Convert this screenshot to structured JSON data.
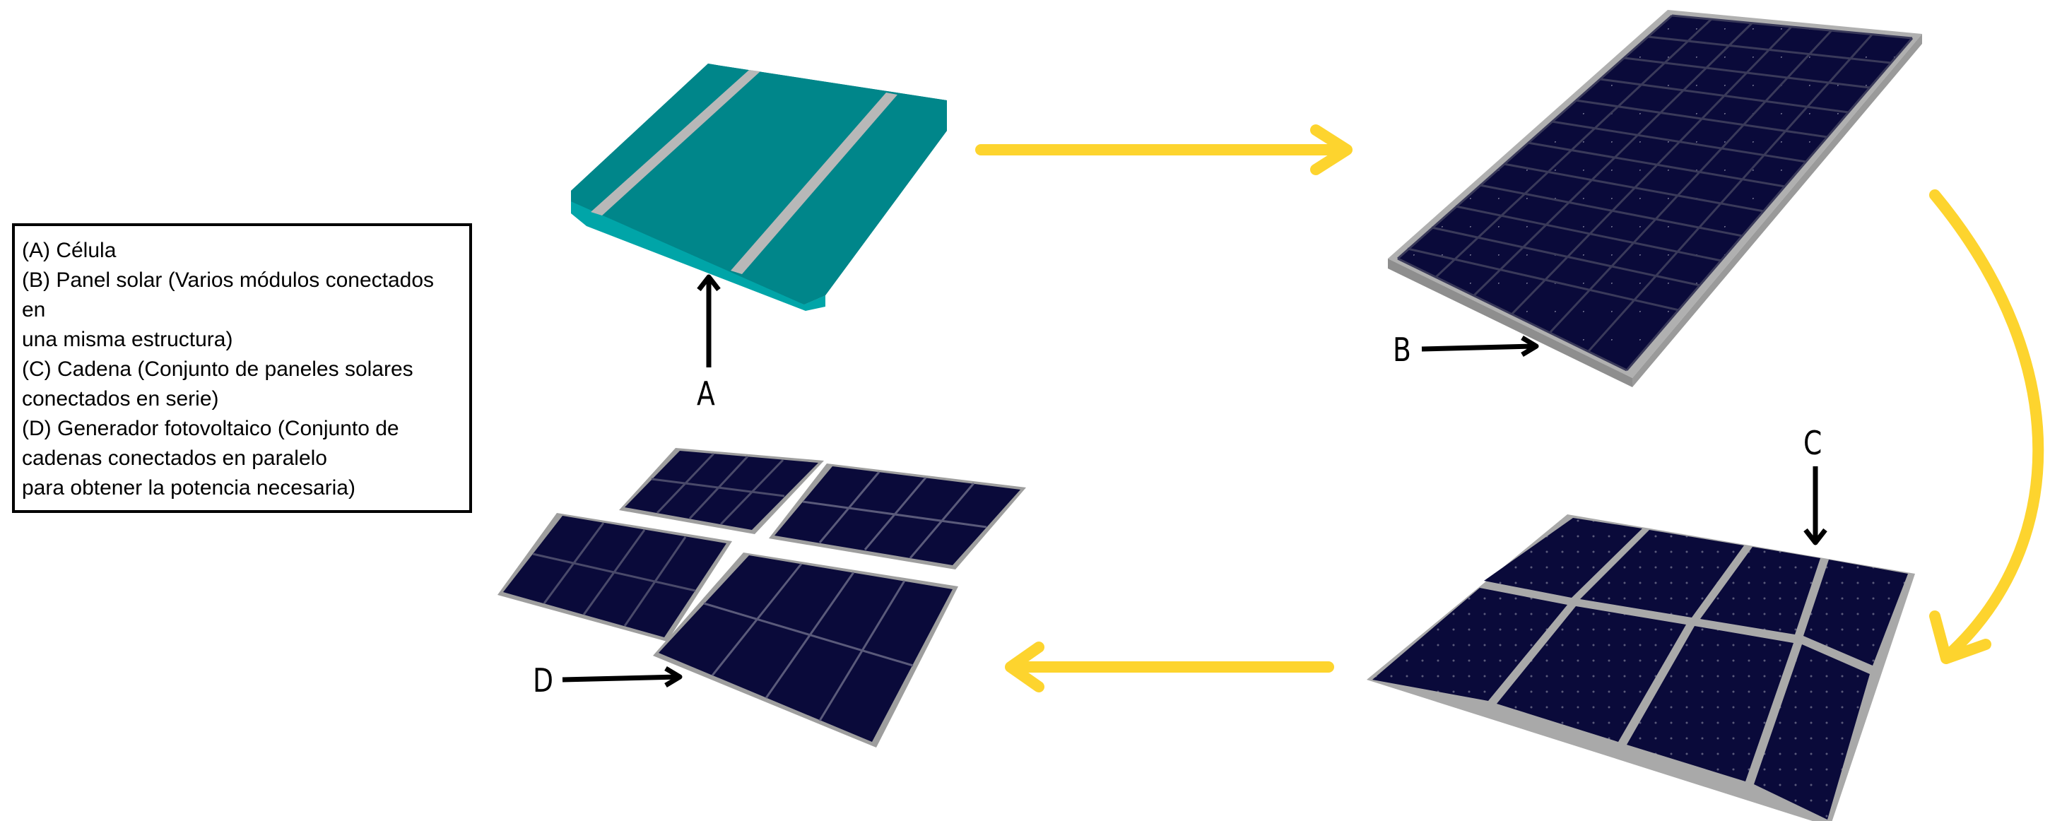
{
  "legend": {
    "lines": [
      "(A) Célula",
      "(B) Panel solar (Varios módulos conectados",
      "en",
      "una misma estructura)",
      "(C) Cadena (Conjunto de paneles solares",
      "conectados en serie)",
      "(D) Generador fotovoltaico (Conjunto de",
      "cadenas conectados en paralelo",
      "para obtener la potencia necesaria)"
    ]
  },
  "labels": {
    "a": "A",
    "b": "B",
    "c": "C",
    "d": "D"
  },
  "colors": {
    "cell": "#00868A",
    "cell_edge": "#00A5A8",
    "busbar": "#B8B8B8",
    "panel": "#0A0A3A",
    "frame": "#A8A8A8",
    "arrow_yellow": "#FDD42E",
    "pointer": "#000000"
  },
  "icons": {
    "cell": "solar-cell-icon",
    "panel": "solar-panel-icon",
    "string": "panel-string-icon",
    "array": "pv-array-icon"
  }
}
